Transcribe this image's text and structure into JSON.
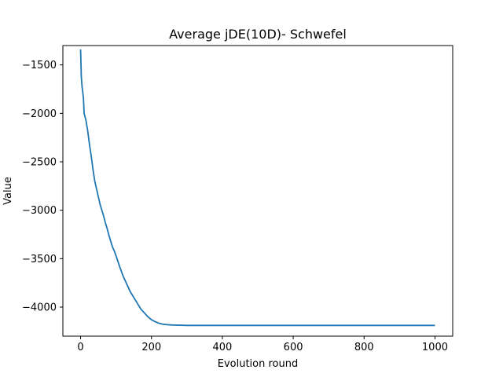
{
  "chart_data": {
    "type": "line",
    "title": "Average jDE(10D)- Schwefel",
    "xlabel": "Evolution round",
    "ylabel": "Value",
    "xlim": [
      -50,
      1050
    ],
    "ylim": [
      -4300,
      -1300
    ],
    "xticks": [
      0,
      200,
      400,
      600,
      800,
      1000
    ],
    "yticks": [
      -1500,
      -2000,
      -2500,
      -3000,
      -3500,
      -4000
    ],
    "tick_labels_x": [
      "0",
      "200",
      "400",
      "600",
      "800",
      "1000"
    ],
    "tick_labels_y": [
      "−1500",
      "−2000",
      "−2500",
      "−3000",
      "−3500",
      "−4000"
    ],
    "grid": false,
    "line_color": "#1f77b4",
    "series": [
      {
        "x": [
          0,
          2,
          4,
          6,
          8,
          10,
          15,
          20,
          25,
          30,
          35,
          40,
          45,
          50,
          55,
          60,
          65,
          70,
          75,
          80,
          85,
          90,
          95,
          100,
          110,
          120,
          130,
          140,
          150,
          160,
          170,
          180,
          190,
          200,
          210,
          220,
          230,
          240,
          250,
          260,
          270,
          280,
          290,
          300,
          320,
          350,
          400,
          500,
          600,
          700,
          800,
          900,
          1000
        ],
        "y": [
          -1340,
          -1620,
          -1720,
          -1780,
          -1840,
          -2000,
          -2070,
          -2180,
          -2320,
          -2440,
          -2580,
          -2700,
          -2780,
          -2860,
          -2940,
          -3000,
          -3060,
          -3130,
          -3190,
          -3260,
          -3320,
          -3380,
          -3420,
          -3470,
          -3580,
          -3680,
          -3760,
          -3840,
          -3900,
          -3960,
          -4020,
          -4060,
          -4100,
          -4130,
          -4150,
          -4165,
          -4175,
          -4180,
          -4183,
          -4185,
          -4186,
          -4187,
          -4188,
          -4189,
          -4189,
          -4189,
          -4189,
          -4189,
          -4189,
          -4189,
          -4189,
          -4189,
          -4189
        ]
      }
    ]
  }
}
